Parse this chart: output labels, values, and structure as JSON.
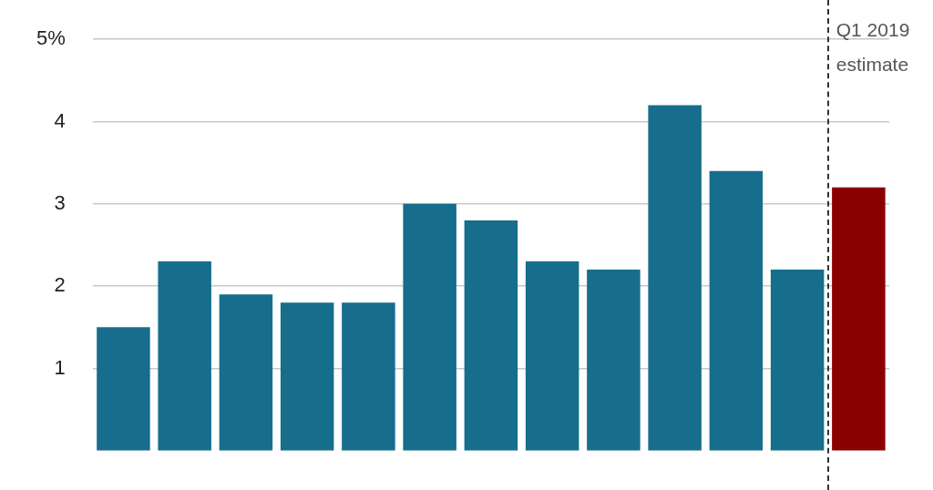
{
  "chart_data": {
    "type": "bar",
    "categories": [
      null,
      null,
      null,
      null,
      null,
      null,
      null,
      null,
      null,
      null,
      null,
      null,
      null
    ],
    "values": [
      1.5,
      2.3,
      1.9,
      1.8,
      1.8,
      3.0,
      2.8,
      2.3,
      2.2,
      4.2,
      3.4,
      2.2,
      3.2
    ],
    "colors": [
      "#176d8c",
      "#176d8c",
      "#176d8c",
      "#176d8c",
      "#176d8c",
      "#176d8c",
      "#176d8c",
      "#176d8c",
      "#176d8c",
      "#176d8c",
      "#176d8c",
      "#176d8c",
      "#8b0000"
    ],
    "ylim": [
      0,
      5
    ],
    "yticks": [
      1,
      2,
      3,
      4,
      {
        "value": 5,
        "label": "5%"
      }
    ],
    "tick_labels": "y",
    "grid": "y",
    "legend": false,
    "annotations": [
      "Q1 2019\nestimate"
    ]
  }
}
